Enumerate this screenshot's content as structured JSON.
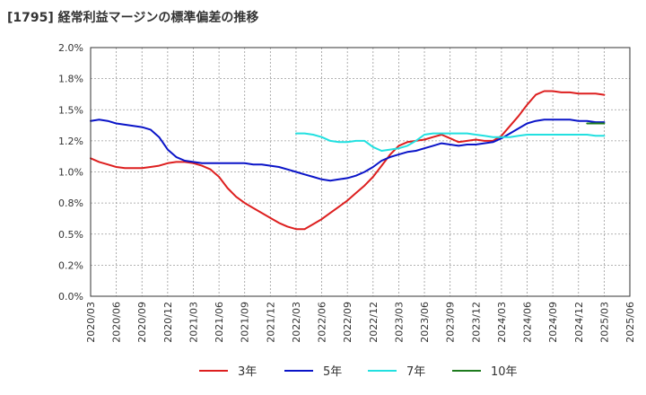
{
  "chart_data": {
    "type": "line",
    "title": "[1795]  経常利益マージンの標準偏差の推移",
    "xlabel": "",
    "ylabel": "",
    "ylim": [
      0,
      0.02
    ],
    "grid": true,
    "legend_position": "bottom",
    "y_ticks": [
      "2.0%",
      "1.8%",
      "1.5%",
      "1.2%",
      "1.0%",
      "0.8%",
      "0.5%",
      "0.2%",
      "0.0%"
    ],
    "y_tick_values": [
      0.02,
      0.0175,
      0.015,
      0.0125,
      0.01,
      0.0075,
      0.005,
      0.0025,
      0.0
    ],
    "x_ticks": [
      "2020/03",
      "2020/06",
      "2020/09",
      "2020/12",
      "2021/03",
      "2021/06",
      "2021/09",
      "2021/12",
      "2022/03",
      "2022/06",
      "2022/09",
      "2022/12",
      "2023/03",
      "2023/06",
      "2023/09",
      "2023/12",
      "2024/03",
      "2024/06",
      "2024/09",
      "2024/12",
      "2025/03",
      "2025/06"
    ],
    "x_min": "2020/03",
    "x_max": "2025/06",
    "series": [
      {
        "name": "3年",
        "color": "#dd1f1f",
        "points": [
          [
            "2020/03",
            0.0111
          ],
          [
            "2020/04",
            0.0108
          ],
          [
            "2020/05",
            0.0106
          ],
          [
            "2020/06",
            0.0104
          ],
          [
            "2020/07",
            0.0103
          ],
          [
            "2020/08",
            0.0103
          ],
          [
            "2020/09",
            0.0103
          ],
          [
            "2020/10",
            0.0104
          ],
          [
            "2020/11",
            0.0105
          ],
          [
            "2020/12",
            0.0107
          ],
          [
            "2021/01",
            0.0108
          ],
          [
            "2021/02",
            0.0108
          ],
          [
            "2021/03",
            0.0107
          ],
          [
            "2021/04",
            0.0105
          ],
          [
            "2021/05",
            0.0102
          ],
          [
            "2021/06",
            0.0096
          ],
          [
            "2021/07",
            0.0087
          ],
          [
            "2021/08",
            0.008
          ],
          [
            "2021/09",
            0.0075
          ],
          [
            "2021/10",
            0.0071
          ],
          [
            "2021/11",
            0.0067
          ],
          [
            "2021/12",
            0.0063
          ],
          [
            "2022/01",
            0.0059
          ],
          [
            "2022/02",
            0.0056
          ],
          [
            "2022/03",
            0.0054
          ],
          [
            "2022/04",
            0.0054
          ],
          [
            "2022/05",
            0.0058
          ],
          [
            "2022/06",
            0.0062
          ],
          [
            "2022/07",
            0.0067
          ],
          [
            "2022/08",
            0.0072
          ],
          [
            "2022/09",
            0.0077
          ],
          [
            "2022/10",
            0.0083
          ],
          [
            "2022/11",
            0.0089
          ],
          [
            "2022/12",
            0.0096
          ],
          [
            "2023/01",
            0.0105
          ],
          [
            "2023/02",
            0.0114
          ],
          [
            "2023/03",
            0.0121
          ],
          [
            "2023/04",
            0.0124
          ],
          [
            "2023/05",
            0.0125
          ],
          [
            "2023/06",
            0.0126
          ],
          [
            "2023/07",
            0.0128
          ],
          [
            "2023/08",
            0.013
          ],
          [
            "2023/09",
            0.0127
          ],
          [
            "2023/10",
            0.0124
          ],
          [
            "2023/11",
            0.0125
          ],
          [
            "2023/12",
            0.0126
          ],
          [
            "2024/01",
            0.0125
          ],
          [
            "2024/02",
            0.0125
          ],
          [
            "2024/03",
            0.0129
          ],
          [
            "2024/04",
            0.0137
          ],
          [
            "2024/05",
            0.0145
          ],
          [
            "2024/06",
            0.0154
          ],
          [
            "2024/07",
            0.0162
          ],
          [
            "2024/08",
            0.0165
          ],
          [
            "2024/09",
            0.0165
          ],
          [
            "2024/10",
            0.0164
          ],
          [
            "2024/11",
            0.0164
          ],
          [
            "2024/12",
            0.0163
          ],
          [
            "2025/01",
            0.0163
          ],
          [
            "2025/02",
            0.0163
          ],
          [
            "2025/03",
            0.0162
          ]
        ]
      },
      {
        "name": "5年",
        "color": "#0a14c8",
        "points": [
          [
            "2020/03",
            0.0141
          ],
          [
            "2020/04",
            0.0142
          ],
          [
            "2020/05",
            0.0141
          ],
          [
            "2020/06",
            0.0139
          ],
          [
            "2020/07",
            0.0138
          ],
          [
            "2020/08",
            0.0137
          ],
          [
            "2020/09",
            0.0136
          ],
          [
            "2020/10",
            0.0134
          ],
          [
            "2020/11",
            0.0128
          ],
          [
            "2020/12",
            0.0118
          ],
          [
            "2021/01",
            0.0112
          ],
          [
            "2021/02",
            0.0109
          ],
          [
            "2021/03",
            0.0108
          ],
          [
            "2021/04",
            0.0107
          ],
          [
            "2021/05",
            0.0107
          ],
          [
            "2021/06",
            0.0107
          ],
          [
            "2021/07",
            0.0107
          ],
          [
            "2021/08",
            0.0107
          ],
          [
            "2021/09",
            0.0107
          ],
          [
            "2021/10",
            0.0106
          ],
          [
            "2021/11",
            0.0106
          ],
          [
            "2021/12",
            0.0105
          ],
          [
            "2022/01",
            0.0104
          ],
          [
            "2022/02",
            0.0102
          ],
          [
            "2022/03",
            0.01
          ],
          [
            "2022/04",
            0.0098
          ],
          [
            "2022/05",
            0.0096
          ],
          [
            "2022/06",
            0.0094
          ],
          [
            "2022/07",
            0.0093
          ],
          [
            "2022/08",
            0.0094
          ],
          [
            "2022/09",
            0.0095
          ],
          [
            "2022/10",
            0.0097
          ],
          [
            "2022/11",
            0.01
          ],
          [
            "2022/12",
            0.0104
          ],
          [
            "2023/01",
            0.0109
          ],
          [
            "2023/02",
            0.0112
          ],
          [
            "2023/03",
            0.0114
          ],
          [
            "2023/04",
            0.0116
          ],
          [
            "2023/05",
            0.0117
          ],
          [
            "2023/06",
            0.0119
          ],
          [
            "2023/07",
            0.0121
          ],
          [
            "2023/08",
            0.0123
          ],
          [
            "2023/09",
            0.0122
          ],
          [
            "2023/10",
            0.0121
          ],
          [
            "2023/11",
            0.0122
          ],
          [
            "2023/12",
            0.0122
          ],
          [
            "2024/01",
            0.0123
          ],
          [
            "2024/02",
            0.0124
          ],
          [
            "2024/03",
            0.0127
          ],
          [
            "2024/04",
            0.0131
          ],
          [
            "2024/05",
            0.0135
          ],
          [
            "2024/06",
            0.0139
          ],
          [
            "2024/07",
            0.0141
          ],
          [
            "2024/08",
            0.0142
          ],
          [
            "2024/09",
            0.0142
          ],
          [
            "2024/10",
            0.0142
          ],
          [
            "2024/11",
            0.0142
          ],
          [
            "2024/12",
            0.0141
          ],
          [
            "2025/01",
            0.0141
          ],
          [
            "2025/02",
            0.014
          ],
          [
            "2025/03",
            0.014
          ]
        ]
      },
      {
        "name": "7年",
        "color": "#22e0e0",
        "points": [
          [
            "2022/03",
            0.0131
          ],
          [
            "2022/04",
            0.0131
          ],
          [
            "2022/05",
            0.013
          ],
          [
            "2022/06",
            0.0128
          ],
          [
            "2022/07",
            0.0125
          ],
          [
            "2022/08",
            0.0124
          ],
          [
            "2022/09",
            0.0124
          ],
          [
            "2022/10",
            0.0125
          ],
          [
            "2022/11",
            0.0125
          ],
          [
            "2022/12",
            0.012
          ],
          [
            "2023/01",
            0.0117
          ],
          [
            "2023/02",
            0.0118
          ],
          [
            "2023/03",
            0.0119
          ],
          [
            "2023/04",
            0.0121
          ],
          [
            "2023/05",
            0.0125
          ],
          [
            "2023/06",
            0.013
          ],
          [
            "2023/07",
            0.0131
          ],
          [
            "2023/08",
            0.0131
          ],
          [
            "2023/09",
            0.0131
          ],
          [
            "2023/10",
            0.0131
          ],
          [
            "2023/11",
            0.0131
          ],
          [
            "2023/12",
            0.013
          ],
          [
            "2024/01",
            0.0129
          ],
          [
            "2024/02",
            0.0128
          ],
          [
            "2024/03",
            0.0128
          ],
          [
            "2024/04",
            0.0128
          ],
          [
            "2024/05",
            0.0129
          ],
          [
            "2024/06",
            0.013
          ],
          [
            "2024/07",
            0.013
          ],
          [
            "2024/08",
            0.013
          ],
          [
            "2024/09",
            0.013
          ],
          [
            "2024/10",
            0.013
          ],
          [
            "2024/11",
            0.013
          ],
          [
            "2024/12",
            0.013
          ],
          [
            "2025/01",
            0.013
          ],
          [
            "2025/02",
            0.0129
          ],
          [
            "2025/03",
            0.0129
          ]
        ]
      },
      {
        "name": "10年",
        "color": "#1e7b1e",
        "points": [
          [
            "2025/01",
            0.0139
          ],
          [
            "2025/02",
            0.0139
          ],
          [
            "2025/03",
            0.0139
          ]
        ]
      }
    ]
  }
}
